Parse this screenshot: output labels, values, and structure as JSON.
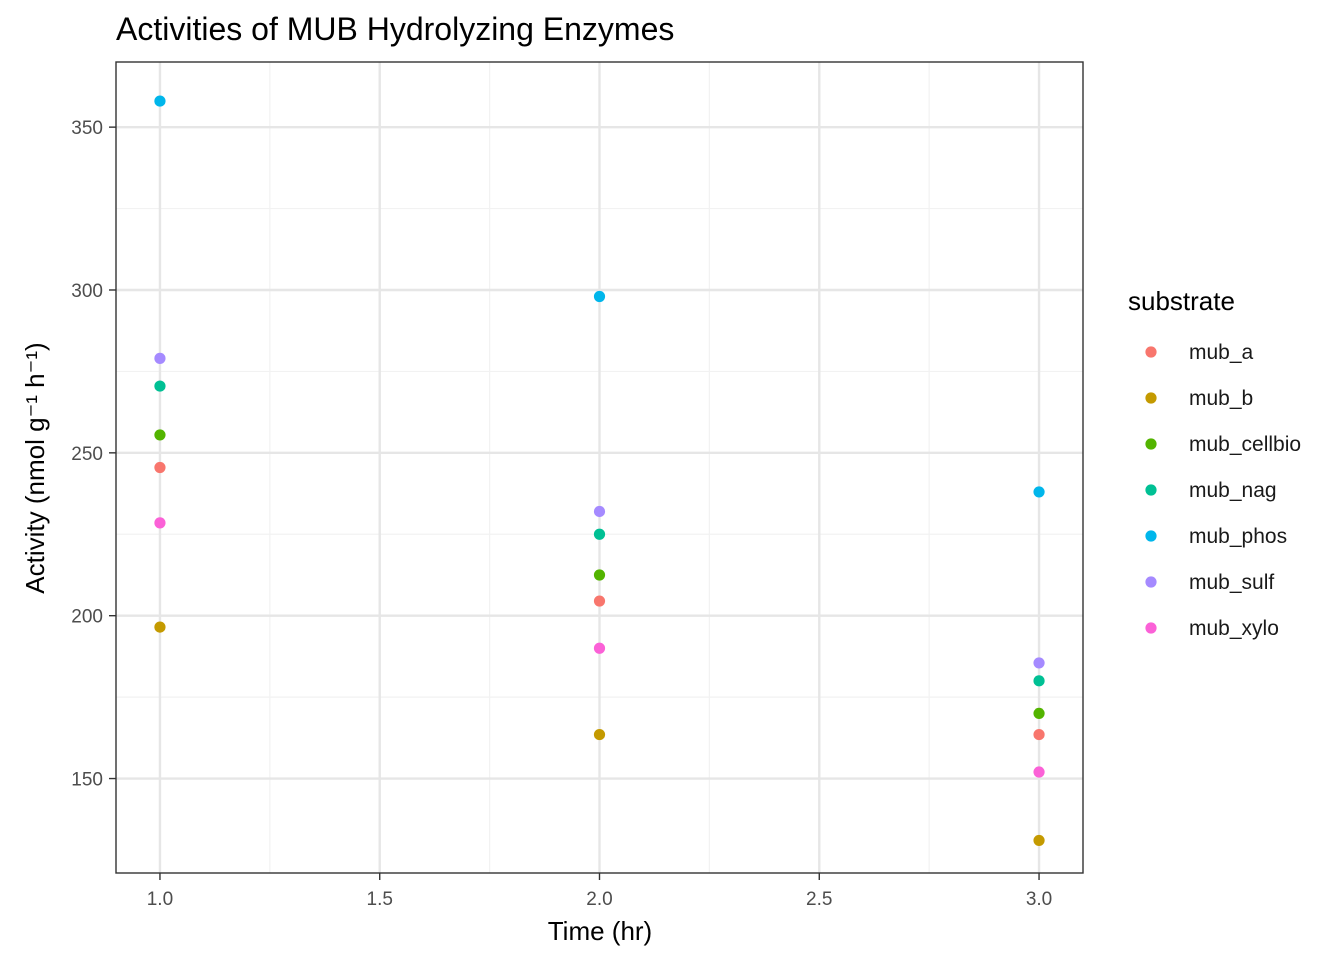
{
  "chart_data": {
    "type": "scatter",
    "title": "Activities of MUB Hydrolyzing Enzymes",
    "xlabel": "Time (hr)",
    "ylabel": "Activity (nmol g⁻¹ h⁻¹)",
    "xlim": [
      0.9,
      3.1
    ],
    "ylim": [
      121,
      370
    ],
    "xticks": [
      1.0,
      1.5,
      2.0,
      2.5,
      3.0
    ],
    "xtick_labels": [
      "1.0",
      "1.5",
      "2.0",
      "2.5",
      "3.0"
    ],
    "yticks": [
      150,
      200,
      250,
      300,
      350
    ],
    "ytick_labels": [
      "150",
      "200",
      "250",
      "300",
      "350"
    ],
    "grid": true,
    "legend": {
      "title": "substrate",
      "position": "right"
    },
    "x": [
      1.0,
      2.0,
      3.0
    ],
    "series": [
      {
        "name": "mub_a",
        "color": "#F8766D",
        "values": [
          245.5,
          204.5,
          163.5
        ]
      },
      {
        "name": "mub_b",
        "color": "#C49A00",
        "values": [
          196.5,
          163.5,
          131.0
        ]
      },
      {
        "name": "mub_cellbio",
        "color": "#53B400",
        "values": [
          255.5,
          212.5,
          170.0
        ]
      },
      {
        "name": "mub_nag",
        "color": "#00C094",
        "values": [
          270.5,
          225.0,
          180.0
        ]
      },
      {
        "name": "mub_phos",
        "color": "#00B6EB",
        "values": [
          358.0,
          298.0,
          238.0
        ]
      },
      {
        "name": "mub_sulf",
        "color": "#A58AFF",
        "values": [
          279.0,
          232.0,
          185.5
        ]
      },
      {
        "name": "mub_xylo",
        "color": "#FB61D7",
        "values": [
          228.5,
          190.0,
          152.0
        ]
      }
    ]
  }
}
